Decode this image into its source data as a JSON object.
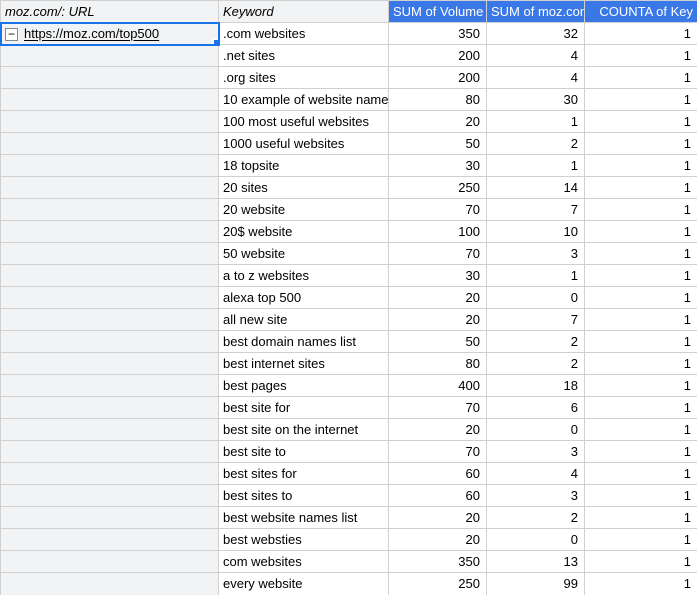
{
  "headers": {
    "url": "moz.com/: URL",
    "keyword": "Keyword",
    "volume": "SUM of Volume",
    "mozcon": "SUM of moz.con",
    "counta": "COUNTA of Key"
  },
  "first_row_url": "https://moz.com/top500",
  "collapse_glyph": "−",
  "rows": [
    {
      "keyword": ".com websites",
      "volume": 350,
      "moz": 32,
      "count": 1
    },
    {
      "keyword": ".net sites",
      "volume": 200,
      "moz": 4,
      "count": 1
    },
    {
      "keyword": ".org sites",
      "volume": 200,
      "moz": 4,
      "count": 1
    },
    {
      "keyword": "10 example of website name",
      "volume": 80,
      "moz": 30,
      "count": 1
    },
    {
      "keyword": "100 most useful websites",
      "volume": 20,
      "moz": 1,
      "count": 1
    },
    {
      "keyword": "1000 useful websites",
      "volume": 50,
      "moz": 2,
      "count": 1
    },
    {
      "keyword": "18 topsite",
      "volume": 30,
      "moz": 1,
      "count": 1
    },
    {
      "keyword": "20 sites",
      "volume": 250,
      "moz": 14,
      "count": 1
    },
    {
      "keyword": "20 website",
      "volume": 70,
      "moz": 7,
      "count": 1
    },
    {
      "keyword": "20$ website",
      "volume": 100,
      "moz": 10,
      "count": 1
    },
    {
      "keyword": "50 website",
      "volume": 70,
      "moz": 3,
      "count": 1
    },
    {
      "keyword": "a to z websites",
      "volume": 30,
      "moz": 1,
      "count": 1
    },
    {
      "keyword": "alexa top 500",
      "volume": 20,
      "moz": 0,
      "count": 1
    },
    {
      "keyword": "all new site",
      "volume": 20,
      "moz": 7,
      "count": 1
    },
    {
      "keyword": "best domain names list",
      "volume": 50,
      "moz": 2,
      "count": 1
    },
    {
      "keyword": "best internet sites",
      "volume": 80,
      "moz": 2,
      "count": 1
    },
    {
      "keyword": "best pages",
      "volume": 400,
      "moz": 18,
      "count": 1
    },
    {
      "keyword": "best site for",
      "volume": 70,
      "moz": 6,
      "count": 1
    },
    {
      "keyword": "best site on the internet",
      "volume": 20,
      "moz": 0,
      "count": 1
    },
    {
      "keyword": "best site to",
      "volume": 70,
      "moz": 3,
      "count": 1
    },
    {
      "keyword": "best sites for",
      "volume": 60,
      "moz": 4,
      "count": 1
    },
    {
      "keyword": "best sites to",
      "volume": 60,
      "moz": 3,
      "count": 1
    },
    {
      "keyword": "best website names list",
      "volume": 20,
      "moz": 2,
      "count": 1
    },
    {
      "keyword": "best websties",
      "volume": 20,
      "moz": 0,
      "count": 1
    },
    {
      "keyword": "com websites",
      "volume": 350,
      "moz": 13,
      "count": 1
    },
    {
      "keyword": "every website",
      "volume": 250,
      "moz": 99,
      "count": 1
    }
  ],
  "colors": {
    "header_bg_light": "#f1f3f4",
    "header_bg_blue": "#3b78e7",
    "border": "#d0d0d0",
    "selection": "#1a73e8"
  }
}
